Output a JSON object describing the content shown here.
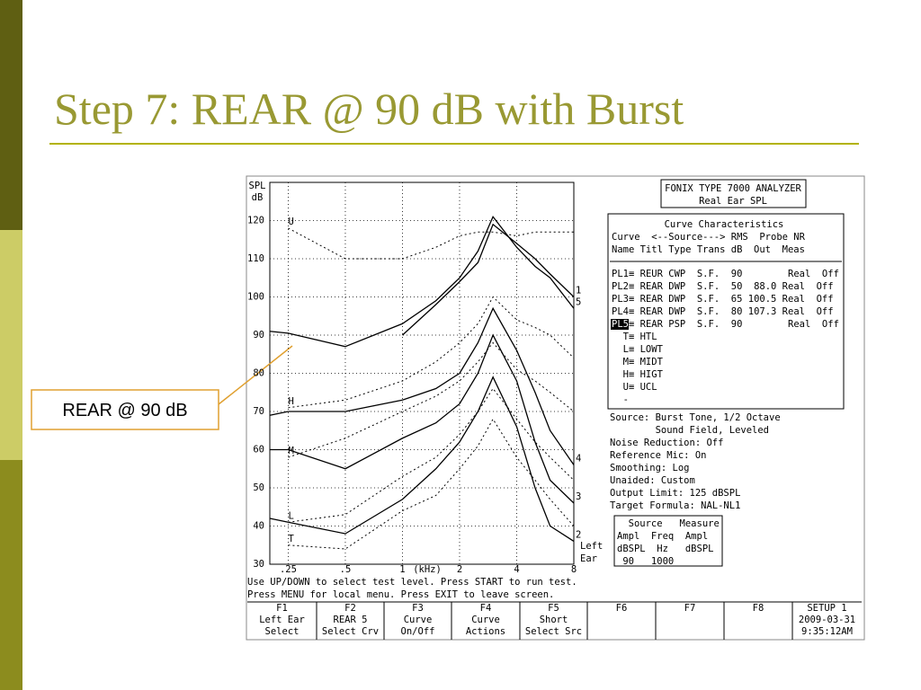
{
  "slide": {
    "title": "Step 7: REAR @ 90 dB with Burst",
    "callout": "REAR @ 90 dB"
  },
  "chart_data": {
    "type": "line",
    "y_label": [
      "SPL",
      "dB"
    ],
    "x_label": "(kHz)",
    "side_label": [
      "Left",
      "Ear"
    ],
    "log_x": true,
    "grid": true,
    "xlim": [
      0.2,
      8
    ],
    "ylim": [
      30,
      130
    ],
    "xticks": [
      {
        "value": 0.25,
        "label": ".25"
      },
      {
        "value": 0.5,
        "label": ".5"
      },
      1,
      2,
      4,
      8
    ],
    "yticks": [
      30,
      40,
      50,
      60,
      70,
      80,
      90,
      100,
      110,
      120
    ],
    "x": [
      0.2,
      0.25,
      0.5,
      1,
      1.5,
      2,
      2.5,
      3,
      4,
      5,
      6,
      8
    ],
    "series": [
      {
        "name": "5",
        "color": "#000",
        "style": "solid",
        "values": [
          91,
          90.5,
          87,
          93,
          99,
          105,
          112,
          121,
          113,
          108,
          105,
          97
        ]
      },
      {
        "name": "1",
        "color": "#000",
        "style": "solid",
        "values": [
          null,
          null,
          null,
          90,
          98,
          104,
          109,
          119,
          114,
          110,
          106,
          100
        ]
      },
      {
        "name": "4",
        "color": "#000",
        "style": "solid",
        "values": [
          69,
          70,
          70,
          73,
          76,
          80,
          88,
          97,
          86,
          75,
          65,
          56
        ]
      },
      {
        "name": "3",
        "color": "#000",
        "style": "solid",
        "values": [
          60,
          60,
          55,
          63,
          67,
          72,
          80,
          90,
          78,
          62,
          52,
          46
        ]
      },
      {
        "name": "2",
        "color": "#000",
        "style": "solid",
        "values": [
          42,
          41,
          38,
          47,
          55,
          62,
          70,
          79,
          66,
          50,
          40,
          36
        ]
      },
      {
        "name": "U",
        "color": "#000",
        "style": "dotted",
        "values": [
          null,
          118,
          110,
          110,
          113,
          116,
          117,
          117,
          116,
          117,
          117,
          117
        ]
      },
      {
        "name": "H",
        "color": "#000",
        "style": "dotted",
        "values": [
          null,
          71,
          73,
          78,
          83,
          88,
          93,
          100,
          94,
          92,
          90,
          84
        ]
      },
      {
        "name": "M",
        "color": "#000",
        "style": "dotted",
        "values": [
          null,
          58,
          63,
          70,
          74,
          78,
          83,
          88,
          81,
          78,
          75,
          70
        ]
      },
      {
        "name": "L",
        "color": "#000",
        "style": "dotted",
        "values": [
          null,
          41,
          43,
          53,
          58,
          64,
          70,
          76,
          68,
          62,
          58,
          52
        ]
      },
      {
        "name": "T",
        "color": "#000",
        "style": "dotted",
        "values": [
          null,
          35,
          34,
          44,
          48,
          55,
          61,
          68,
          58,
          52,
          47,
          40
        ]
      }
    ]
  },
  "screen": {
    "header": [
      "FONIX TYPE 7000 ANALYZER",
      "Real Ear SPL"
    ],
    "table": {
      "title": "Curve Characteristics",
      "head": [
        "Curve  <--Source---> RMS  Probe NR",
        "Name Titl Type Trans dB  Out  Meas"
      ],
      "rows": [
        [
          "PL1",
          "≡ REUR CWP  S.F.  90        Real  Off"
        ],
        [
          "PL2",
          "≡ REAR DWP  S.F.  50  88.0 Real  Off"
        ],
        [
          "PL3",
          "≡ REAR DWP  S.F.  65 100.5 Real  Off"
        ],
        [
          "PL4",
          "≡ REAR DWP  S.F.  80 107.3 Real  Off"
        ],
        [
          "PL5",
          "≡ REAR PSP  S.F.  90        Real  Off"
        ]
      ],
      "legend": [
        "  T≡ HTL",
        "  L≡ LOWT",
        "  M≡ MIDT",
        "  H≡ HIGT",
        "  U≡ UCL",
        "  -"
      ]
    },
    "info": [
      "Source: Burst Tone, 1/2 Octave",
      "        Sound Field, Leveled",
      "Noise Reduction: Off",
      "Reference Mic: On",
      "Smoothing: Log",
      "Unaided: Custom",
      "Output Limit: 125 dBSPL",
      "Target Formula: NAL-NL1"
    ],
    "source_box": [
      "  Source   Measure",
      "Ampl  Freq  Ampl",
      "dBSPL  Hz   dBSPL",
      " 90   1000"
    ],
    "status": [
      "Use UP/DOWN to select test level. Press START to run test.",
      "Press MENU for local menu. Press EXIT to leave screen."
    ],
    "fkeys": [
      [
        "F1",
        "Left Ear",
        "Select"
      ],
      [
        "F2",
        "REAR 5",
        "Select Crv"
      ],
      [
        "F3",
        "Curve",
        "On/Off"
      ],
      [
        "F4",
        "Curve",
        "Actions"
      ],
      [
        "F5",
        "Short",
        "Select Src"
      ],
      [
        "F6"
      ],
      [
        "F7"
      ],
      [
        "F8"
      ],
      [
        "SETUP 1",
        "2009-03-31",
        "9:35:12AM"
      ]
    ]
  }
}
